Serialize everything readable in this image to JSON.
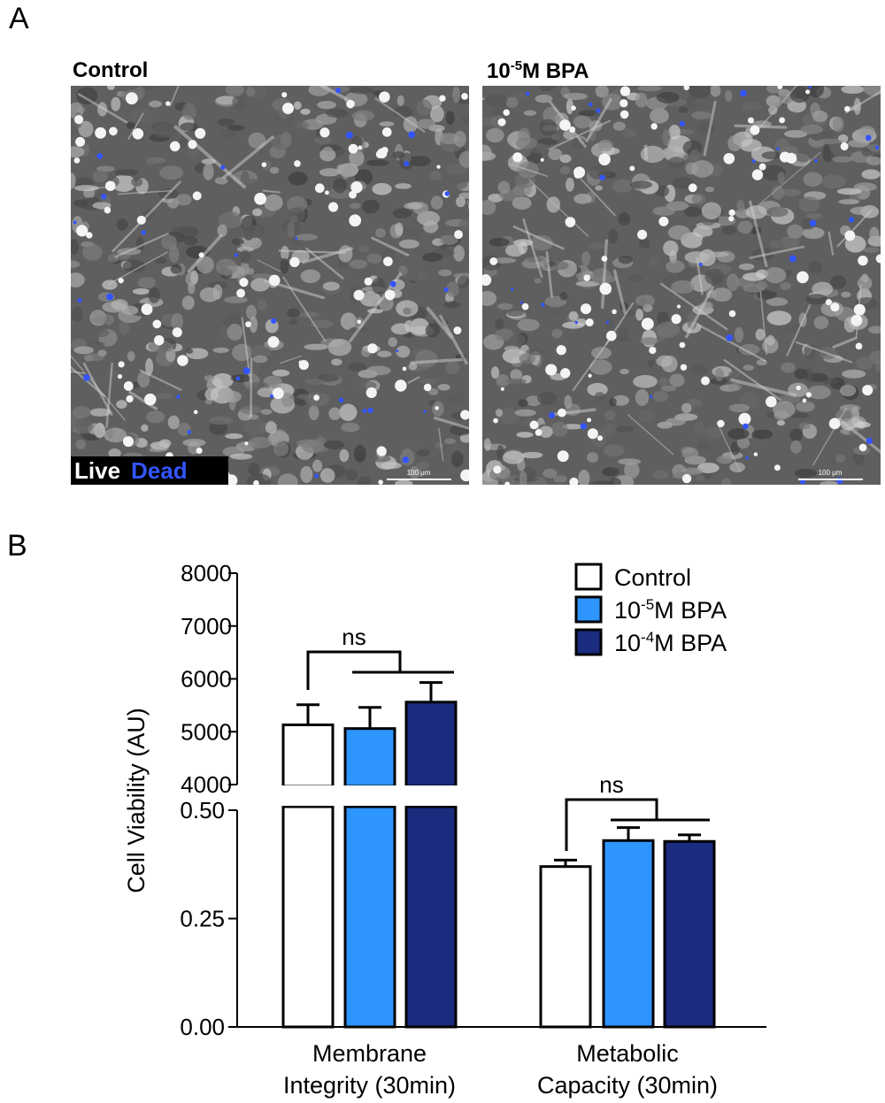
{
  "panels": {
    "a": "A",
    "b": "B"
  },
  "micrographs": [
    {
      "title_main": "Control",
      "title_sup": "",
      "title_pre": "",
      "scale_bar": "100 μm"
    },
    {
      "title_pre": "10",
      "title_sup": "-5",
      "title_main": "M BPA",
      "scale_bar": "100 μm"
    }
  ],
  "live_dead": {
    "live": "Live",
    "dead": "Dead"
  },
  "colors": {
    "control": "#ffffff",
    "bpa5": "#2e95ff",
    "bpa4": "#1b2b7e",
    "dead_stain": "#3355ff"
  },
  "chart_data": {
    "type": "bar",
    "ylabel": "Cell Viability (AU)",
    "broken_axis": true,
    "upper_axis": {
      "ylim": [
        4000,
        8000
      ],
      "ticks": [
        "4000",
        "5000",
        "6000",
        "7000",
        "8000"
      ]
    },
    "lower_axis": {
      "ylim": [
        0,
        0.5
      ],
      "ticks": [
        "0.00",
        "0.25",
        "0.50"
      ]
    },
    "categories": [
      {
        "line1": "Membrane",
        "line2": "Integrity (30min)"
      },
      {
        "line1": "Metabolic",
        "line2": "Capacity (30min)"
      }
    ],
    "series": [
      {
        "name": "Control",
        "name_pre": "",
        "name_sup": "",
        "name_post": "Control",
        "color": "#ffffff",
        "values": [
          5130,
          0.37
        ],
        "errors": [
          380,
          0.015
        ]
      },
      {
        "name": "10-5M BPA",
        "name_pre": "10",
        "name_sup": "-5",
        "name_post": "M BPA",
        "color": "#2e95ff",
        "values": [
          5060,
          0.43
        ],
        "errors": [
          400,
          0.03
        ]
      },
      {
        "name": "10-4M BPA",
        "name_pre": "10",
        "name_sup": "-4",
        "name_post": "M BPA",
        "color": "#1b2b7e",
        "values": [
          5560,
          0.428
        ],
        "errors": [
          370,
          0.015
        ]
      }
    ],
    "annotations": [
      {
        "text": "ns",
        "group": 0
      },
      {
        "text": "ns",
        "group": 1
      }
    ],
    "legend_position": "top-right"
  }
}
